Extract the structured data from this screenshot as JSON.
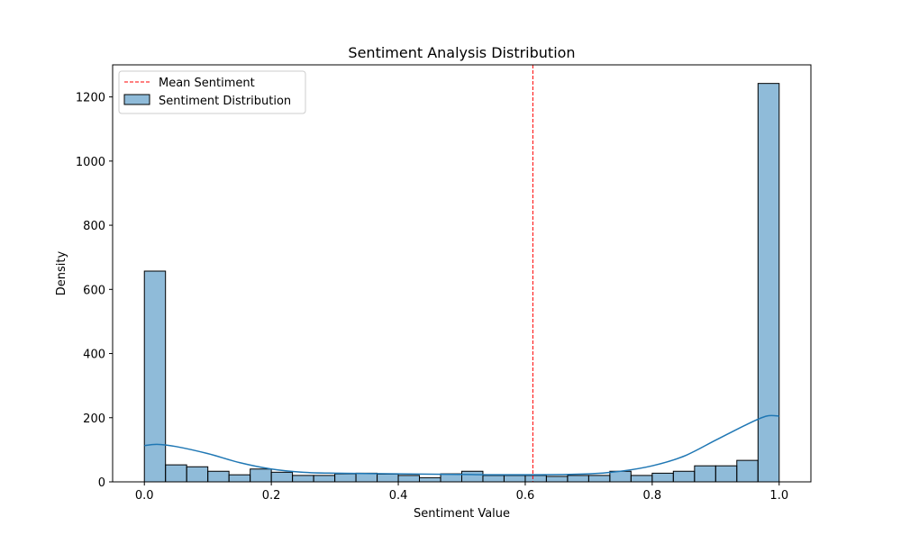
{
  "chart_data": {
    "type": "bar",
    "title": "Sentiment Analysis Distribution",
    "xlabel": "Sentiment Value",
    "ylabel": "Density",
    "xlim": [
      -0.05,
      1.05
    ],
    "ylim": [
      0,
      1300
    ],
    "xticks": [
      0.0,
      0.2,
      0.4,
      0.6,
      0.8,
      1.0
    ],
    "xtick_labels": [
      "0.0",
      "0.2",
      "0.4",
      "0.6",
      "0.8",
      "1.0"
    ],
    "yticks": [
      0,
      200,
      400,
      600,
      800,
      1000,
      1200
    ],
    "ytick_labels": [
      "0",
      "200",
      "400",
      "600",
      "800",
      "1000",
      "1200"
    ],
    "grid": false,
    "legend_position": "top-left",
    "bin_width": 0.0333,
    "series": [
      {
        "name": "Sentiment Distribution",
        "kind": "histogram",
        "color": "#1f77b4",
        "bin_starts": [
          0.0,
          0.0333,
          0.0667,
          0.1,
          0.1333,
          0.1667,
          0.2,
          0.2333,
          0.2667,
          0.3,
          0.3333,
          0.3667,
          0.4,
          0.4333,
          0.4667,
          0.5,
          0.5333,
          0.5667,
          0.6,
          0.6333,
          0.6667,
          0.7,
          0.7333,
          0.7667,
          0.8,
          0.8333,
          0.8667,
          0.9,
          0.9333,
          0.9667
        ],
        "values": [
          657,
          53,
          47,
          33,
          22,
          40,
          30,
          20,
          20,
          25,
          27,
          24,
          20,
          13,
          25,
          33,
          20,
          20,
          20,
          17,
          20,
          20,
          33,
          20,
          27,
          33,
          50,
          50,
          67,
          1242
        ]
      },
      {
        "name": "KDE",
        "kind": "line",
        "color": "#1f77b4",
        "x": [
          0.0,
          0.02,
          0.05,
          0.1,
          0.15,
          0.2,
          0.25,
          0.3,
          0.4,
          0.5,
          0.6,
          0.7,
          0.75,
          0.8,
          0.85,
          0.9,
          0.95,
          0.98,
          1.0
        ],
        "y": [
          113,
          117,
          110,
          88,
          60,
          40,
          30,
          27,
          25,
          23,
          22,
          25,
          33,
          50,
          80,
          130,
          180,
          205,
          205
        ]
      }
    ],
    "mean_line": {
      "name": "Mean Sentiment",
      "x": 0.612,
      "color": "#ff0000",
      "style": "dashed"
    }
  }
}
